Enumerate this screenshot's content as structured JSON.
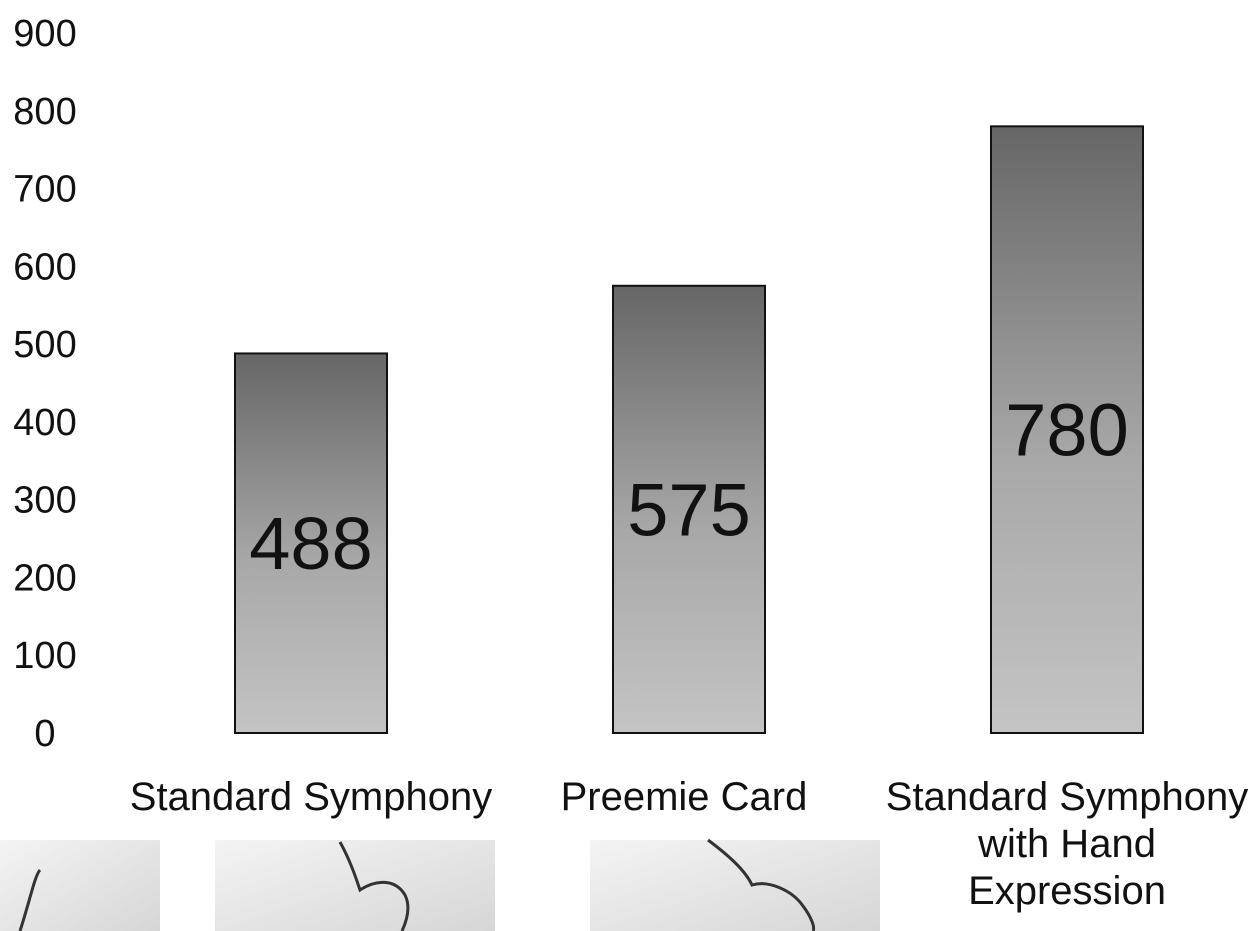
{
  "chart_data": {
    "type": "bar",
    "categories": [
      [
        "Standard Symphony"
      ],
      [
        "Preemie Card"
      ],
      [
        "Standard Symphony",
        "with Hand",
        "Expression"
      ]
    ],
    "values": [
      488,
      575,
      780
    ],
    "data_labels": [
      "488",
      "575",
      "780"
    ],
    "y_ticks": [
      "0",
      "100",
      "200",
      "300",
      "400",
      "500",
      "600",
      "700",
      "800",
      "900"
    ],
    "ylim": [
      0,
      900
    ],
    "grid": false,
    "legend": "none",
    "bar_gradient": {
      "top": "#666666",
      "bottom": "#c4c4c4"
    },
    "bar_stroke": "#111111"
  },
  "decor": {
    "photo_strip": [
      "breast-pump-photo-left",
      "breast-pump-photo-middle",
      "breast-pump-photo-right"
    ]
  }
}
